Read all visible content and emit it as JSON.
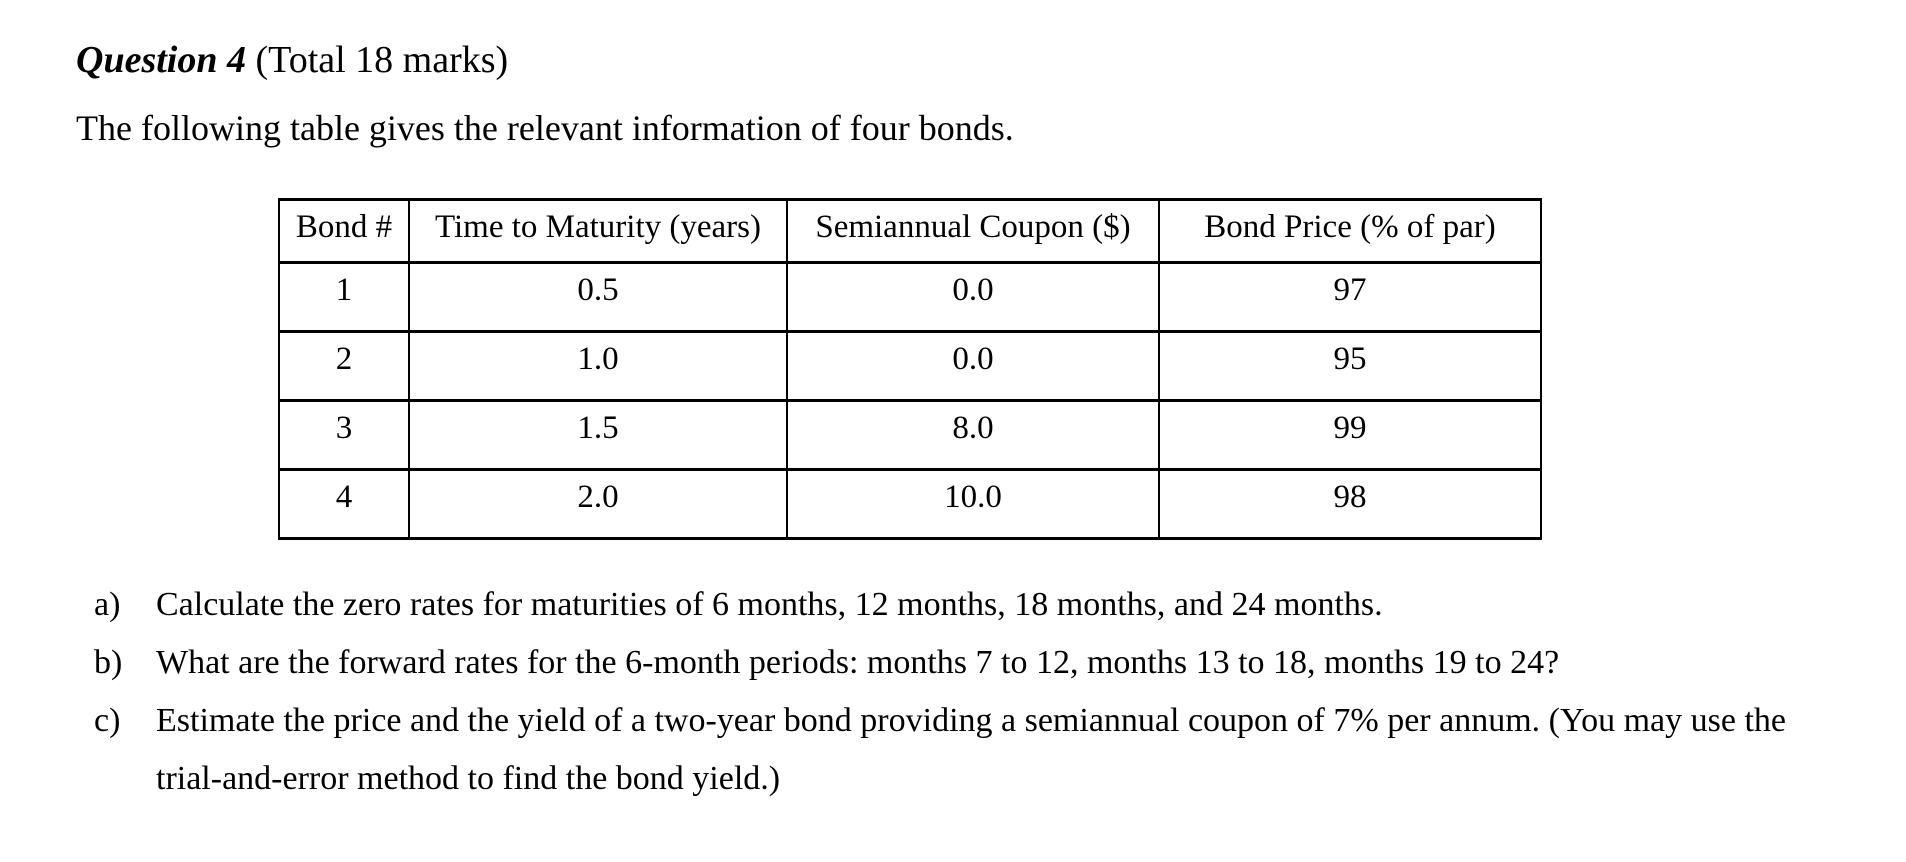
{
  "colors": {
    "background": "#ffffff",
    "text": "#000000",
    "table_border": "#000000"
  },
  "header": {
    "question_label": "Question 4",
    "marks_label": " (Total 18 marks)"
  },
  "intro": {
    "text": "The following table gives the relevant information of four bonds."
  },
  "table": {
    "headers": [
      "Bond #",
      "Time to Maturity (years)",
      "Semiannual Coupon ($)",
      "Bond Price (% of par)"
    ],
    "rows": [
      [
        "1",
        "0.5",
        "0.0",
        "97"
      ],
      [
        "2",
        "1.0",
        "0.0",
        "95"
      ],
      [
        "3",
        "1.5",
        "8.0",
        "99"
      ],
      [
        "4",
        "2.0",
        "10.0",
        "98"
      ]
    ]
  },
  "questions": [
    {
      "marker": "a)",
      "text": "Calculate the zero rates for maturities of 6 months, 12 months, 18 months, and 24 months."
    },
    {
      "marker": "b)",
      "text": "What are the forward rates for the 6-month periods: months 7 to 12, months 13 to 18, months 19 to 24?"
    },
    {
      "marker": "c)",
      "text": "Estimate the price and the yield of a two-year bond providing a semiannual coupon of 7% per annum. (You may use the trial-and-error method to find the bond yield.)"
    }
  ]
}
